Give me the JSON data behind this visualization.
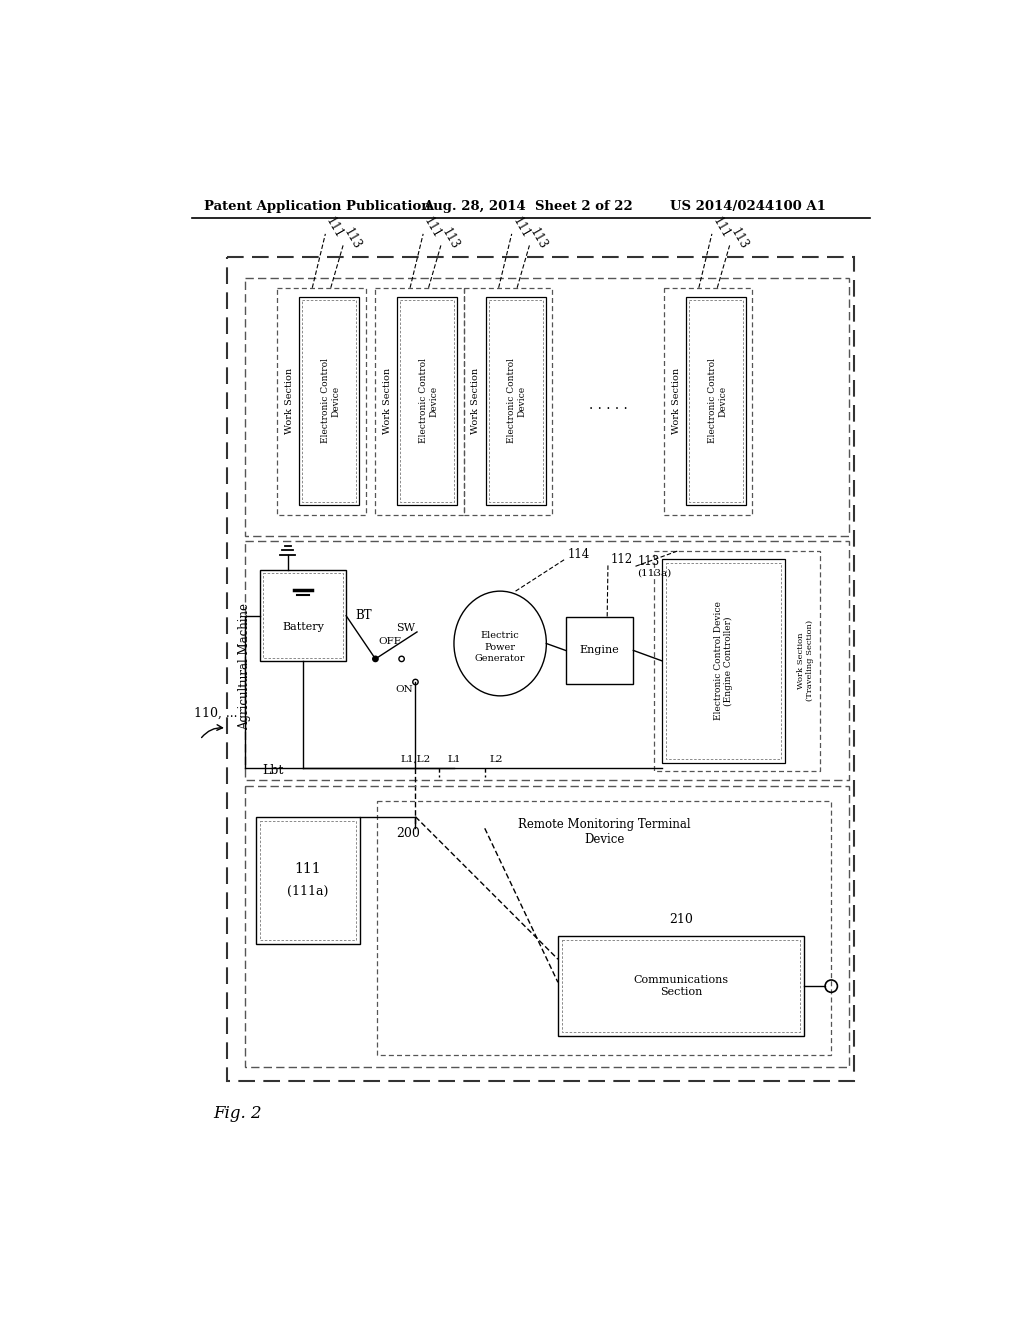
{
  "title_left": "Patent Application Publication",
  "title_mid": "Aug. 28, 2014  Sheet 2 of 22",
  "title_right": "US 2014/0244100 A1",
  "fig_label": "Fig. 2",
  "bg_color": "#ffffff",
  "text_color": "#000000"
}
